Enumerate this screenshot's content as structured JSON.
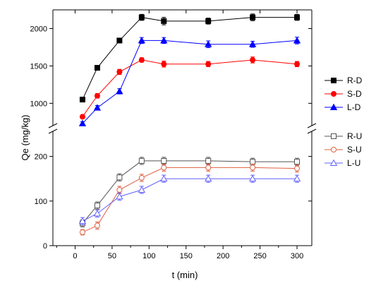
{
  "chart_data": {
    "type": "line",
    "xlabel": "t (min)",
    "ylabel": "Qe (mg/kg)",
    "xlim": [
      -30,
      320
    ],
    "x_ticks": [
      "0",
      "50",
      "100",
      "150",
      "200",
      "250",
      "300"
    ],
    "upper_panel": {
      "ylim": [
        720,
        2250
      ],
      "y_ticks": [
        "1000",
        "1500",
        "2000"
      ],
      "series": [
        {
          "name": "R-D",
          "color": "#000000",
          "marker": "square-filled",
          "x": [
            10,
            30,
            60,
            90,
            120,
            180,
            240,
            300
          ],
          "y": [
            1050,
            1475,
            1840,
            2150,
            2100,
            2100,
            2150,
            2150
          ],
          "err": [
            30,
            30,
            30,
            40,
            50,
            40,
            45,
            40
          ]
        },
        {
          "name": "S-D",
          "color": "#ff0000",
          "marker": "circle-filled",
          "x": [
            10,
            30,
            60,
            90,
            120,
            180,
            240,
            300
          ],
          "y": [
            820,
            1100,
            1420,
            1580,
            1525,
            1525,
            1580,
            1525
          ],
          "err": [
            25,
            30,
            35,
            30,
            40,
            35,
            40,
            35
          ]
        },
        {
          "name": "L-D",
          "color": "#0000ff",
          "marker": "triangle-filled",
          "x": [
            10,
            30,
            60,
            90,
            120,
            180,
            240,
            300
          ],
          "y": [
            730,
            940,
            1160,
            1840,
            1840,
            1790,
            1790,
            1840
          ],
          "err": [
            25,
            30,
            35,
            40,
            40,
            45,
            40,
            45
          ]
        }
      ]
    },
    "lower_panel": {
      "ylim": [
        0,
        250
      ],
      "y_ticks": [
        "0",
        "100",
        "200"
      ],
      "series": [
        {
          "name": "R-U",
          "color": "#555555",
          "marker": "square-open",
          "x": [
            10,
            30,
            60,
            90,
            120,
            180,
            240,
            300
          ],
          "y": [
            50,
            90,
            153,
            190,
            190,
            190,
            188,
            188
          ],
          "err": [
            8,
            8,
            8,
            8,
            8,
            8,
            8,
            8
          ]
        },
        {
          "name": "S-U",
          "color": "#e06040",
          "marker": "circle-open",
          "x": [
            10,
            30,
            60,
            90,
            120,
            180,
            240,
            300
          ],
          "y": [
            30,
            45,
            125,
            152,
            175,
            175,
            175,
            173
          ],
          "err": [
            6,
            8,
            8,
            8,
            8,
            8,
            8,
            8
          ]
        },
        {
          "name": "L-U",
          "color": "#6060ff",
          "marker": "triangle-open",
          "x": [
            10,
            30,
            60,
            90,
            120,
            180,
            240,
            300
          ],
          "y": [
            55,
            72,
            110,
            125,
            150,
            150,
            150,
            150
          ],
          "err": [
            8,
            8,
            8,
            8,
            8,
            8,
            8,
            8
          ]
        }
      ]
    }
  }
}
